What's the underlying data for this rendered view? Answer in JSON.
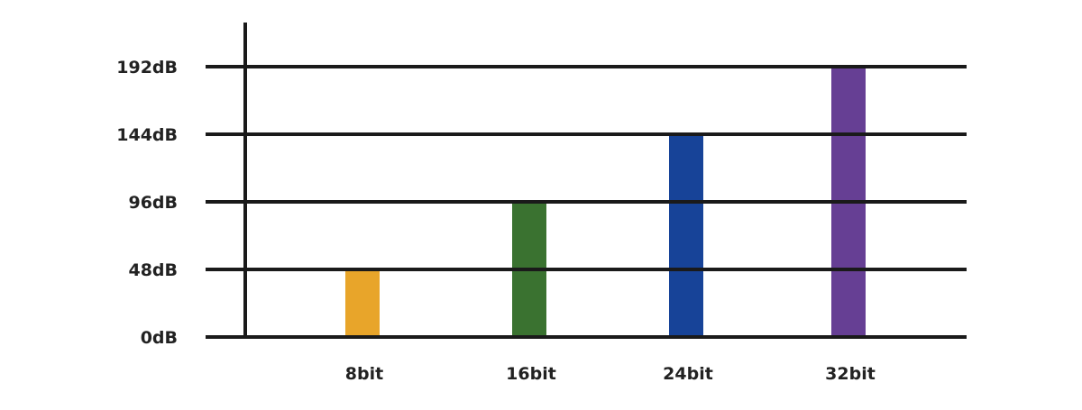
{
  "chart_data": {
    "type": "bar",
    "categories": [
      "8bit",
      "16bit",
      "24bit",
      "32bit"
    ],
    "values": [
      48,
      96,
      144,
      192
    ],
    "colors": [
      "#e8a52a",
      "#3a7230",
      "#174398",
      "#663f94"
    ],
    "title": "",
    "xlabel": "",
    "ylabel": "",
    "ylim": [
      0,
      192
    ],
    "yticks": [
      0,
      48,
      96,
      144,
      192
    ],
    "ytick_labels": [
      "0dB",
      "48dB",
      "96dB",
      "144dB",
      "192dB"
    ],
    "grid": true,
    "legend": "none"
  }
}
